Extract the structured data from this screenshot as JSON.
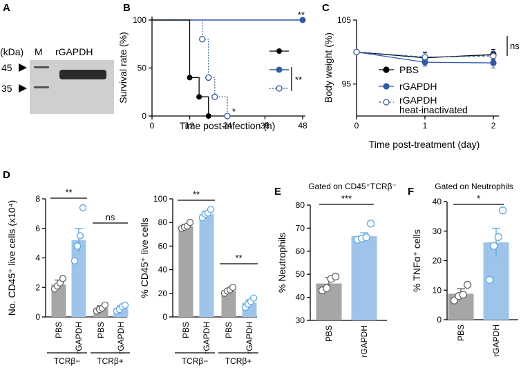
{
  "colors": {
    "black": "#000000",
    "blue": "#2f5aa8",
    "light_blue": "#9ec4ea",
    "circle_blue": "#5aa7e6",
    "gray": "#a6a6a6",
    "gel_bg": "#cfcfcf",
    "band": "#2a2a2a"
  },
  "panel_labels": {
    "a": "A",
    "b": "B",
    "c": "C",
    "d": "D",
    "e": "E",
    "f": "F"
  },
  "gel": {
    "kda_label": "(kDa)",
    "lane_m": "M",
    "lane_sample": "rGAPDH",
    "marker_45": "45",
    "marker_35": "35"
  },
  "chart_data": [
    {
      "id": "B",
      "type": "line",
      "title": "",
      "xlabel": "Time post-infection (h)",
      "ylabel": "Survival rate (%)",
      "xlim": [
        0,
        48
      ],
      "ylim": [
        0,
        100
      ],
      "xticks": [
        "0",
        "12",
        "24",
        "36",
        "48"
      ],
      "yticks": [
        "0",
        "50",
        "100"
      ],
      "series": [
        {
          "name": "PBS",
          "style": "solid black step",
          "x": [
            0,
            12,
            12,
            15,
            15,
            18,
            18
          ],
          "y": [
            100,
            100,
            40,
            40,
            20,
            20,
            0
          ]
        },
        {
          "name": "rGAPDH",
          "style": "solid blue",
          "x": [
            0,
            48
          ],
          "y": [
            100,
            100
          ]
        },
        {
          "name": "rGAPDH heat-inactivated",
          "style": "dotted blue open",
          "x": [
            0,
            16,
            16,
            18,
            18,
            20,
            20,
            24,
            24
          ],
          "y": [
            100,
            100,
            80,
            80,
            40,
            40,
            20,
            20,
            0
          ]
        }
      ],
      "annotations": {
        "top_right": "**",
        "bracket": "**",
        "near_end": "*"
      }
    },
    {
      "id": "C",
      "type": "line",
      "xlabel": "Time post-treatment (day)",
      "ylabel": "Body weight (%)",
      "xlim": [
        0,
        2
      ],
      "ylim": [
        90,
        105
      ],
      "xticks": [
        "0",
        "1",
        "2"
      ],
      "yticks": [
        "95",
        "105"
      ],
      "legend": [
        "PBS",
        "rGAPDH",
        "rGAPDH heat-inactivated"
      ],
      "legend_lines": [
        "PBS",
        "rGAPDH",
        "rGAPDH",
        "heat-inactivated"
      ],
      "series": [
        {
          "name": "PBS",
          "x": [
            0,
            1,
            2
          ],
          "y": [
            100,
            99.1,
            99.6
          ],
          "err": [
            0,
            0.8,
            0.8
          ]
        },
        {
          "name": "rGAPDH",
          "x": [
            0,
            1,
            2
          ],
          "y": [
            100,
            98.4,
            98.3
          ],
          "err": [
            0,
            0.6,
            0.8
          ]
        },
        {
          "name": "rGAPDH heat-inactivated",
          "x": [
            0,
            1,
            2
          ],
          "y": [
            100,
            99.2,
            99.4
          ],
          "err": [
            0,
            0.8,
            0.7
          ]
        }
      ],
      "annotations": {
        "sig": "ns"
      }
    },
    {
      "id": "D1",
      "type": "bar",
      "ylabel": "No. CD45⁺ live cells (x10⁴)",
      "ylim": [
        0,
        8
      ],
      "yticks": [
        "0",
        "2",
        "4",
        "6",
        "8"
      ],
      "categories": [
        "PBS",
        "rGAPDH",
        "PBS",
        "rGAPDH"
      ],
      "groups": [
        "TCRβ−",
        "TCRβ+"
      ],
      "values": [
        2.2,
        5.2,
        0.6,
        0.6
      ],
      "sem": [
        0.3,
        0.8,
        0.15,
        0.15
      ],
      "points": [
        [
          1.9,
          2.1,
          2.3,
          2.6
        ],
        [
          3.8,
          4.8,
          5.5,
          7.4
        ],
        [
          0.4,
          0.5,
          0.6,
          0.8
        ],
        [
          0.4,
          0.5,
          0.7,
          0.8
        ]
      ],
      "sig": [
        "**",
        "ns"
      ]
    },
    {
      "id": "D2",
      "type": "bar",
      "ylabel": "% CD45⁺ live cells",
      "ylim": [
        0,
        100
      ],
      "yticks": [
        "0",
        "20",
        "40",
        "60",
        "80",
        "100"
      ],
      "categories": [
        "PBS",
        "rGAPDH",
        "PBS",
        "rGAPDH"
      ],
      "groups": [
        "TCRβ−",
        "TCRβ+"
      ],
      "values": [
        77,
        87,
        22,
        12
      ],
      "sem": [
        1.5,
        2.5,
        1.5,
        2.5
      ],
      "points": [
        [
          75,
          76,
          77,
          80
        ],
        [
          84,
          87,
          88,
          91
        ],
        [
          20,
          22,
          23,
          25
        ],
        [
          8,
          11,
          13,
          16
        ]
      ],
      "sig": [
        "**",
        "**"
      ]
    },
    {
      "id": "E",
      "type": "bar",
      "title": "Gated on CD45⁺TCRβ⁻",
      "ylabel": "% Neutrophils",
      "ylim": [
        30,
        80
      ],
      "yticks": [
        "30",
        "40",
        "50",
        "60",
        "70",
        "80"
      ],
      "categories": [
        "PBS",
        "rGAPDH"
      ],
      "values": [
        46,
        66.5
      ],
      "sem": [
        2.5,
        1.5
      ],
      "points": [
        [
          43,
          44,
          48,
          49
        ],
        [
          65,
          65.5,
          66,
          72
        ]
      ],
      "sig": [
        "***"
      ]
    },
    {
      "id": "F",
      "type": "bar",
      "title": "Gated on Neutrophils",
      "ylabel": "% TNFα⁺ cells",
      "ylim": [
        0,
        40
      ],
      "yticks": [
        "0",
        "10",
        "20",
        "30",
        "40"
      ],
      "categories": [
        "PBS",
        "rGAPDH"
      ],
      "values": [
        8.8,
        26.2
      ],
      "sem": [
        1.7,
        4.8
      ],
      "points": [
        [
          6.5,
          8.0,
          8.5,
          11.8
        ],
        [
          13.5,
          25.0,
          28.0,
          37.0
        ]
      ],
      "sig": [
        "*"
      ]
    }
  ]
}
